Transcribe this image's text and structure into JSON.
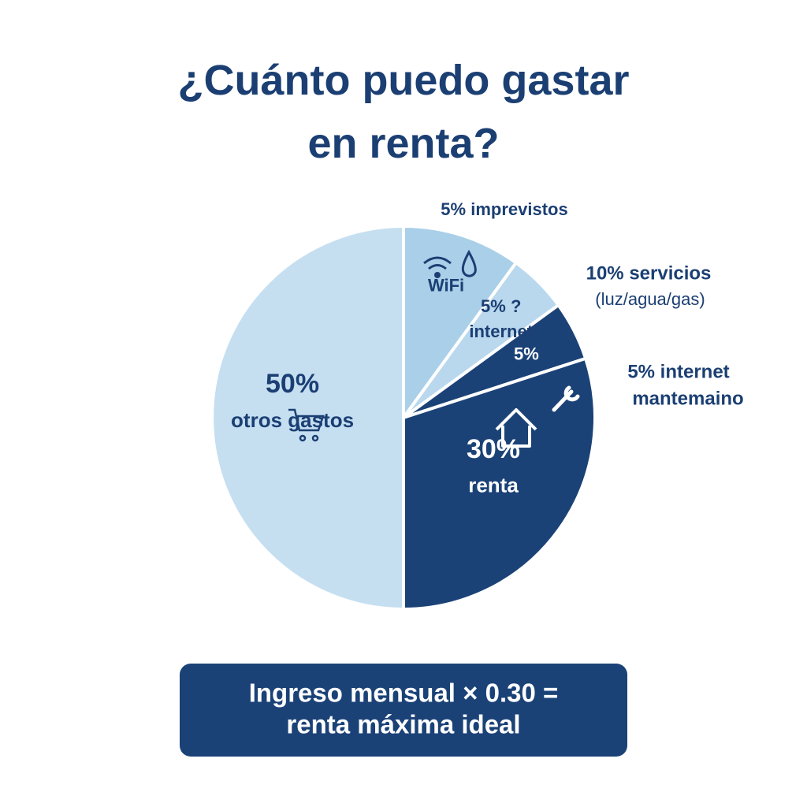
{
  "chart_data": {
    "type": "pie",
    "title": "¿Cuánto puedo gastar en renta?",
    "slices": [
      {
        "name": "WiFi",
        "value": 10,
        "color": "#a9cfe9"
      },
      {
        "name": "internet",
        "value": 5,
        "value_label": "5% ?",
        "color": "#b9d8ee"
      },
      {
        "value": 5,
        "value_label": "5%",
        "color": "#1b4277"
      },
      {
        "name": "renta",
        "value": 30,
        "value_label": "30%",
        "color": "#1b4277"
      },
      {
        "name": "otros gastos",
        "value": 50,
        "value_label": "50%",
        "color": "#c5dff1"
      }
    ],
    "annotations": [
      "5% imprevistos",
      "10% servicios",
      "(luz/agua/gas)",
      "5% internet",
      "mantemaino"
    ]
  },
  "formula": [
    "Ingreso mensual × 0.30 =",
    "renta máxima ideal"
  ]
}
